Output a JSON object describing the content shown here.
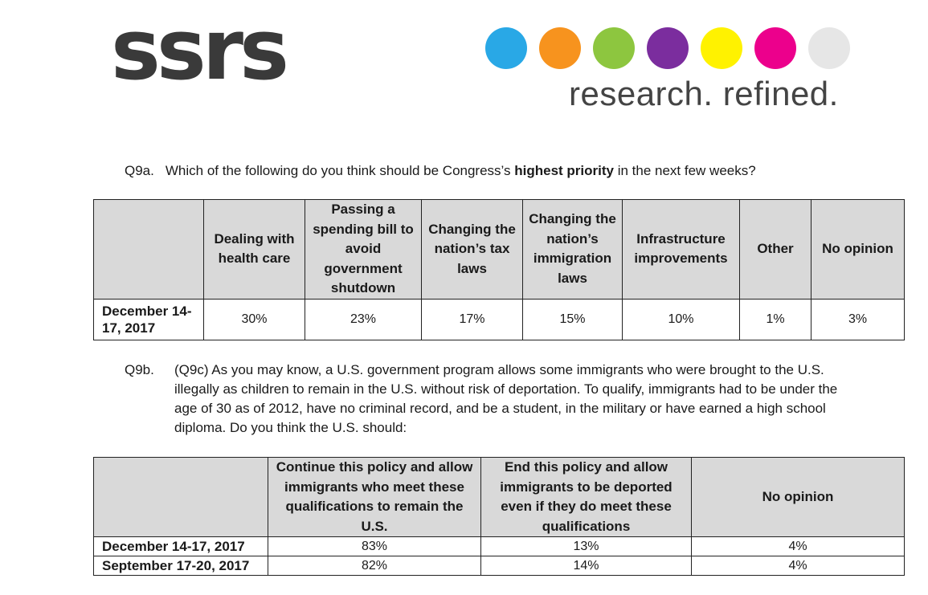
{
  "logo": {
    "wordmark": "ssrs",
    "tagline": "research. refined."
  },
  "brand_colors": [
    "#29a8e6",
    "#f7931e",
    "#8dc63f",
    "#7b2d9e",
    "#fff200",
    "#ec008c",
    "#e6e6e6"
  ],
  "q9a": {
    "number": "Q9a.",
    "text_before": "Which of the following do you think should be Congress’s ",
    "text_bold": "highest priority",
    "text_after": " in the next few weeks?",
    "columns": [
      "Dealing with health care",
      "Passing a spending bill to avoid government shutdown",
      "Changing the nation’s tax laws",
      "Changing the nation’s immigration laws",
      "Infrastructure improvements",
      "Other",
      "No opinion"
    ],
    "rows": [
      {
        "label": "December 14-17, 2017",
        "values": [
          "30%",
          "23%",
          "17%",
          "15%",
          "10%",
          "1%",
          "3%"
        ]
      }
    ]
  },
  "q9b": {
    "number": "Q9b.",
    "text": "(Q9c) As you may know, a U.S. government program allows some immigrants who were brought to the U.S. illegally as children to remain in the U.S. without risk of deportation. To qualify, immigrants had to be under the age of 30 as of 2012, have no criminal record, and be a student, in the military or have earned a high school diploma. Do you think the U.S. should:",
    "columns": [
      "Continue this policy and allow immigrants who meet these qualifications to remain the U.S.",
      "End this policy and allow immigrants to be deported even if they do meet these qualifications",
      "No opinion"
    ],
    "rows": [
      {
        "label": "December 14-17, 2017",
        "values": [
          "83%",
          "13%",
          "4%"
        ]
      },
      {
        "label": "September 17-20, 2017",
        "values": [
          "82%",
          "14%",
          "4%"
        ]
      }
    ]
  }
}
